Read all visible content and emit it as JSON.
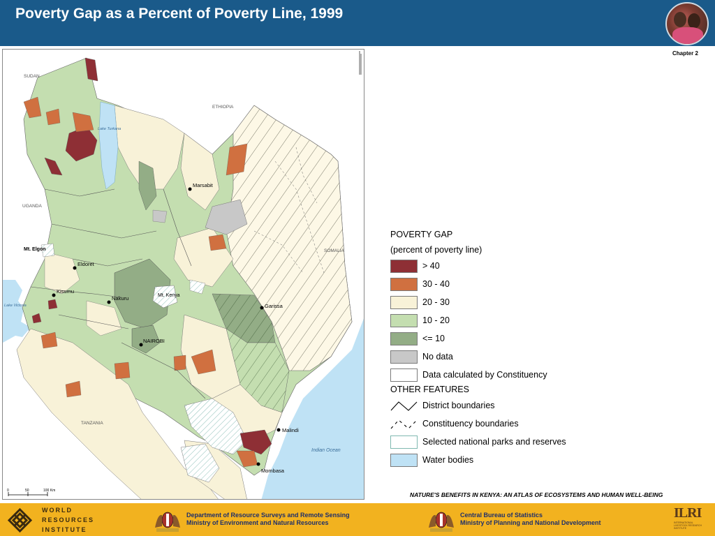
{
  "header": {
    "title": "Poverty Gap as a Percent of Poverty Line, 1999",
    "chapter": "Chapter 2"
  },
  "map": {
    "countries": [
      "SUDAN",
      "ETHIOPIA",
      "UGANDA",
      "SOMALIA",
      "TANZANIA"
    ],
    "lake_turkana": "Lake Turkana",
    "lake_victoria": "Lake Victoria",
    "indian_ocean": "Indian Ocean",
    "mt_elgon": "Mt. Elgon",
    "mt_kenya": "Mt. Kenya",
    "towns": [
      "Marsabit",
      "Eldoret",
      "Kisumu",
      "Nakuru",
      "NAIROBI",
      "Garissa",
      "Malindi",
      "Mombasa"
    ],
    "scale_labels": [
      "0",
      "50",
      "100 Km"
    ]
  },
  "legend": {
    "title": "POVERTY GAP",
    "subtitle": "(percent of poverty line)",
    "classes": [
      {
        "label": "> 40",
        "color": "#8e2f35"
      },
      {
        "label": "30 - 40",
        "color": "#d07040"
      },
      {
        "label": "20 - 30",
        "color": "#f8f2d8"
      },
      {
        "label": "10 - 20",
        "color": "#c4deb0"
      },
      {
        "label": "<= 10",
        "color": "#93ad86"
      },
      {
        "label": "No data",
        "color": "#c8c8c8"
      },
      {
        "label": "Data calculated by Constituency",
        "color": "#ffffff"
      }
    ],
    "other_title": "OTHER FEATURES",
    "features": [
      {
        "label": "District boundaries",
        "icon": "solid-line-icon"
      },
      {
        "label": "Constituency boundaries",
        "icon": "dashed-line-icon"
      },
      {
        "label": "Selected national parks and reserves",
        "icon": "park-hatch-icon"
      },
      {
        "label": "Water bodies",
        "color": "#bfe2f5"
      }
    ]
  },
  "atlas_title": "NATURE'S BENEFITS IN KENYA: AN ATLAS OF ECOSYSTEMS AND HUMAN WELL-BEING",
  "footer": {
    "wri_lines": [
      "WORLD",
      "RESOURCES",
      "INSTITUTE"
    ],
    "dept1_lines": [
      "Department of Resource Surveys and Remote Sensing",
      "Ministry of Environment and Natural Resources"
    ],
    "dept2_lines": [
      "Central Bureau of Statistics",
      "Ministry of Planning and National Development"
    ],
    "ilri_name": "ILRI",
    "ilri_sub": "INTERNATIONAL LIVESTOCK RESEARCH INSTITUTE"
  }
}
